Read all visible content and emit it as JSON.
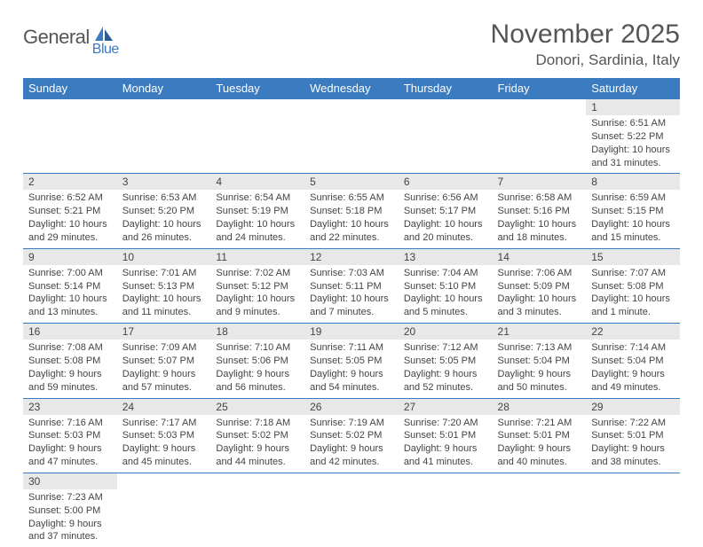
{
  "logo": {
    "part1": "General",
    "part2": "Blue"
  },
  "title": "November 2025",
  "location": "Donori, Sardinia, Italy",
  "header_bg": "#3b7bbf",
  "daynum_bg": "#e8e8e8",
  "row_border": "#3b7bbf",
  "text_color": "#444444",
  "weekdays": [
    "Sunday",
    "Monday",
    "Tuesday",
    "Wednesday",
    "Thursday",
    "Friday",
    "Saturday"
  ],
  "weeks": [
    {
      "nums": [
        "",
        "",
        "",
        "",
        "",
        "",
        "1"
      ],
      "cells": [
        "",
        "",
        "",
        "",
        "",
        "",
        "Sunrise: 6:51 AM\nSunset: 5:22 PM\nDaylight: 10 hours and 31 minutes."
      ]
    },
    {
      "nums": [
        "2",
        "3",
        "4",
        "5",
        "6",
        "7",
        "8"
      ],
      "cells": [
        "Sunrise: 6:52 AM\nSunset: 5:21 PM\nDaylight: 10 hours and 29 minutes.",
        "Sunrise: 6:53 AM\nSunset: 5:20 PM\nDaylight: 10 hours and 26 minutes.",
        "Sunrise: 6:54 AM\nSunset: 5:19 PM\nDaylight: 10 hours and 24 minutes.",
        "Sunrise: 6:55 AM\nSunset: 5:18 PM\nDaylight: 10 hours and 22 minutes.",
        "Sunrise: 6:56 AM\nSunset: 5:17 PM\nDaylight: 10 hours and 20 minutes.",
        "Sunrise: 6:58 AM\nSunset: 5:16 PM\nDaylight: 10 hours and 18 minutes.",
        "Sunrise: 6:59 AM\nSunset: 5:15 PM\nDaylight: 10 hours and 15 minutes."
      ]
    },
    {
      "nums": [
        "9",
        "10",
        "11",
        "12",
        "13",
        "14",
        "15"
      ],
      "cells": [
        "Sunrise: 7:00 AM\nSunset: 5:14 PM\nDaylight: 10 hours and 13 minutes.",
        "Sunrise: 7:01 AM\nSunset: 5:13 PM\nDaylight: 10 hours and 11 minutes.",
        "Sunrise: 7:02 AM\nSunset: 5:12 PM\nDaylight: 10 hours and 9 minutes.",
        "Sunrise: 7:03 AM\nSunset: 5:11 PM\nDaylight: 10 hours and 7 minutes.",
        "Sunrise: 7:04 AM\nSunset: 5:10 PM\nDaylight: 10 hours and 5 minutes.",
        "Sunrise: 7:06 AM\nSunset: 5:09 PM\nDaylight: 10 hours and 3 minutes.",
        "Sunrise: 7:07 AM\nSunset: 5:08 PM\nDaylight: 10 hours and 1 minute."
      ]
    },
    {
      "nums": [
        "16",
        "17",
        "18",
        "19",
        "20",
        "21",
        "22"
      ],
      "cells": [
        "Sunrise: 7:08 AM\nSunset: 5:08 PM\nDaylight: 9 hours and 59 minutes.",
        "Sunrise: 7:09 AM\nSunset: 5:07 PM\nDaylight: 9 hours and 57 minutes.",
        "Sunrise: 7:10 AM\nSunset: 5:06 PM\nDaylight: 9 hours and 56 minutes.",
        "Sunrise: 7:11 AM\nSunset: 5:05 PM\nDaylight: 9 hours and 54 minutes.",
        "Sunrise: 7:12 AM\nSunset: 5:05 PM\nDaylight: 9 hours and 52 minutes.",
        "Sunrise: 7:13 AM\nSunset: 5:04 PM\nDaylight: 9 hours and 50 minutes.",
        "Sunrise: 7:14 AM\nSunset: 5:04 PM\nDaylight: 9 hours and 49 minutes."
      ]
    },
    {
      "nums": [
        "23",
        "24",
        "25",
        "26",
        "27",
        "28",
        "29"
      ],
      "cells": [
        "Sunrise: 7:16 AM\nSunset: 5:03 PM\nDaylight: 9 hours and 47 minutes.",
        "Sunrise: 7:17 AM\nSunset: 5:03 PM\nDaylight: 9 hours and 45 minutes.",
        "Sunrise: 7:18 AM\nSunset: 5:02 PM\nDaylight: 9 hours and 44 minutes.",
        "Sunrise: 7:19 AM\nSunset: 5:02 PM\nDaylight: 9 hours and 42 minutes.",
        "Sunrise: 7:20 AM\nSunset: 5:01 PM\nDaylight: 9 hours and 41 minutes.",
        "Sunrise: 7:21 AM\nSunset: 5:01 PM\nDaylight: 9 hours and 40 minutes.",
        "Sunrise: 7:22 AM\nSunset: 5:01 PM\nDaylight: 9 hours and 38 minutes."
      ]
    },
    {
      "nums": [
        "30",
        "",
        "",
        "",
        "",
        "",
        ""
      ],
      "cells": [
        "Sunrise: 7:23 AM\nSunset: 5:00 PM\nDaylight: 9 hours and 37 minutes.",
        "",
        "",
        "",
        "",
        "",
        ""
      ]
    }
  ]
}
